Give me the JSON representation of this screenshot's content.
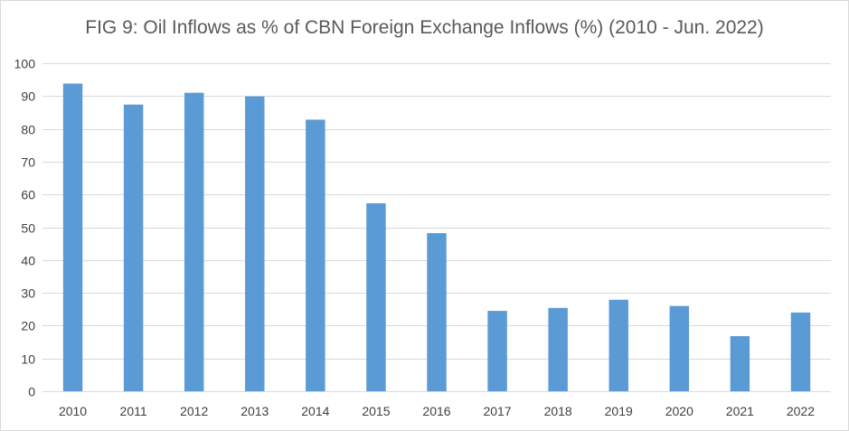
{
  "chart_data": {
    "type": "bar",
    "title": "FIG 9: Oil Inflows as % of CBN Foreign Exchange Inflows (%) (2010 - Jun. 2022)",
    "xlabel": "",
    "ylabel": "",
    "categories": [
      "2010",
      "2011",
      "2012",
      "2013",
      "2014",
      "2015",
      "2016",
      "2017",
      "2018",
      "2019",
      "2020",
      "2021",
      "2022"
    ],
    "values": [
      93.8,
      87.4,
      91.0,
      89.9,
      82.8,
      57.3,
      48.2,
      24.5,
      25.4,
      27.9,
      26.0,
      16.8,
      24.0
    ],
    "ylim": [
      0,
      100
    ],
    "yticks": [
      0,
      10,
      20,
      30,
      40,
      50,
      60,
      70,
      80,
      90,
      100
    ],
    "grid": true,
    "legend": "none",
    "colors": {
      "bar": "#5b9bd5",
      "grid": "#d9d9d9",
      "text": "#404040",
      "title": "#595959"
    }
  }
}
